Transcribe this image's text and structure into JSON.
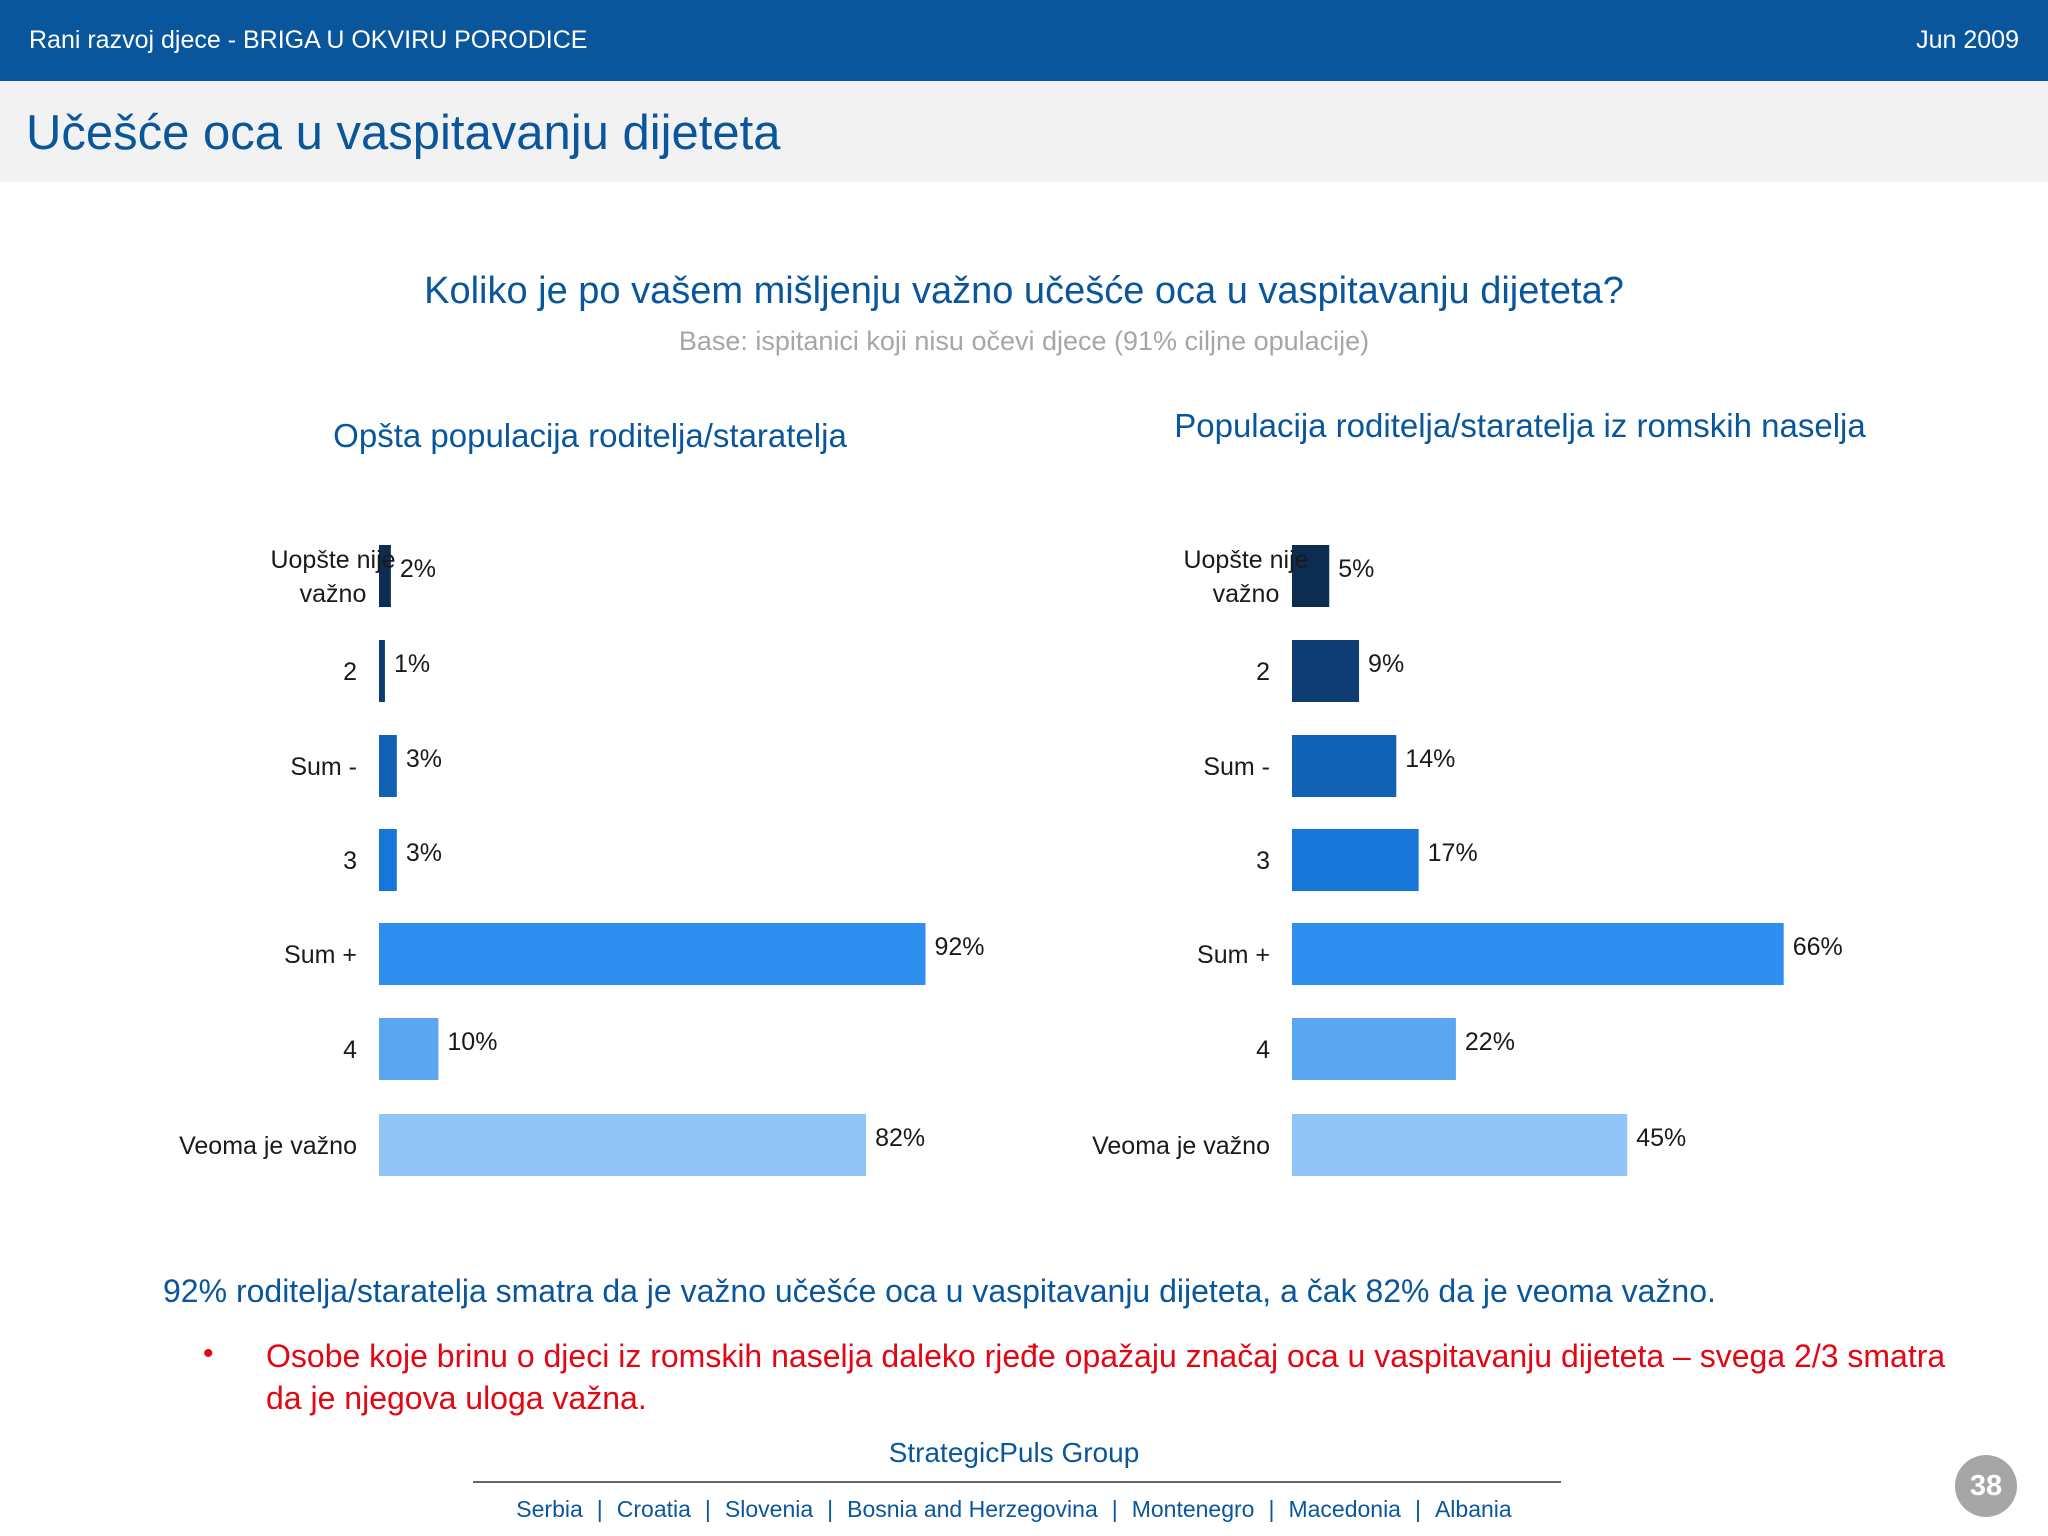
{
  "header": {
    "left_text": "Rani razvoj djece - BRIGA U OKVIRU PORODICE",
    "right_text": "Jun 2009"
  },
  "slide_title": "Učešće oca u vaspitavanju dijeteta",
  "question": "Koliko je po vašem mišljenju važno učešće oca u vaspitavanju dijeteta?",
  "base_note": "Base: ispitanici koji nisu očevi djece (91% ciljne opulacije)",
  "chart_data": [
    {
      "type": "bar",
      "orientation": "horizontal",
      "title": "Opšta populacija roditelja/staratelja",
      "categories": [
        "Uopšte nije važno",
        "2",
        "Sum -",
        "3",
        "Sum +",
        "4",
        "Veoma je važno"
      ],
      "values": [
        2,
        1,
        3,
        3,
        92,
        10,
        82
      ],
      "value_labels": [
        "2%",
        "1%",
        "3%",
        "3%",
        "92%",
        "10%",
        "82%"
      ],
      "colors": [
        "#0c2c52",
        "#0f3d73",
        "#1161b5",
        "#1876d8",
        "#2f8ff0",
        "#5aa6f0",
        "#92c5f7"
      ],
      "xlim": [
        0,
        100
      ]
    },
    {
      "type": "bar",
      "orientation": "horizontal",
      "title": "Populacija roditelja/staratelja iz romskih naselja",
      "categories": [
        "Uopšte nije važno",
        "2",
        "Sum -",
        "3",
        "Sum +",
        "4",
        "Veoma je važno"
      ],
      "values": [
        5,
        9,
        14,
        17,
        66,
        22,
        45
      ],
      "value_labels": [
        "5%",
        "9%",
        "14%",
        "17%",
        "66%",
        "22%",
        "45%"
      ],
      "colors": [
        "#0c2c52",
        "#0f3d73",
        "#1161b5",
        "#1876d8",
        "#2f8ff0",
        "#5aa6f0",
        "#92c5f7"
      ],
      "xlim": [
        0,
        100
      ]
    }
  ],
  "summary": "92% roditelja/staratelja smatra da je važno učešće oca u vaspitavanju dijeteta, a čak 82% da je veoma važno.",
  "bullet": "Osobe koje brinu o djeci iz romskih naselja daleko rjeđe opažaju značaj oca u vaspitavanju dijeteta – svega 2/3 smatra da je njegova uloga važna.",
  "footer": {
    "brand": "StrategicPuls Group",
    "countries": [
      "Serbia",
      "Croatia",
      "Slovenia",
      "Bosnia and Herzegovina",
      "Montenegro",
      "Macedonia",
      "Albania"
    ]
  },
  "page_number": "38"
}
